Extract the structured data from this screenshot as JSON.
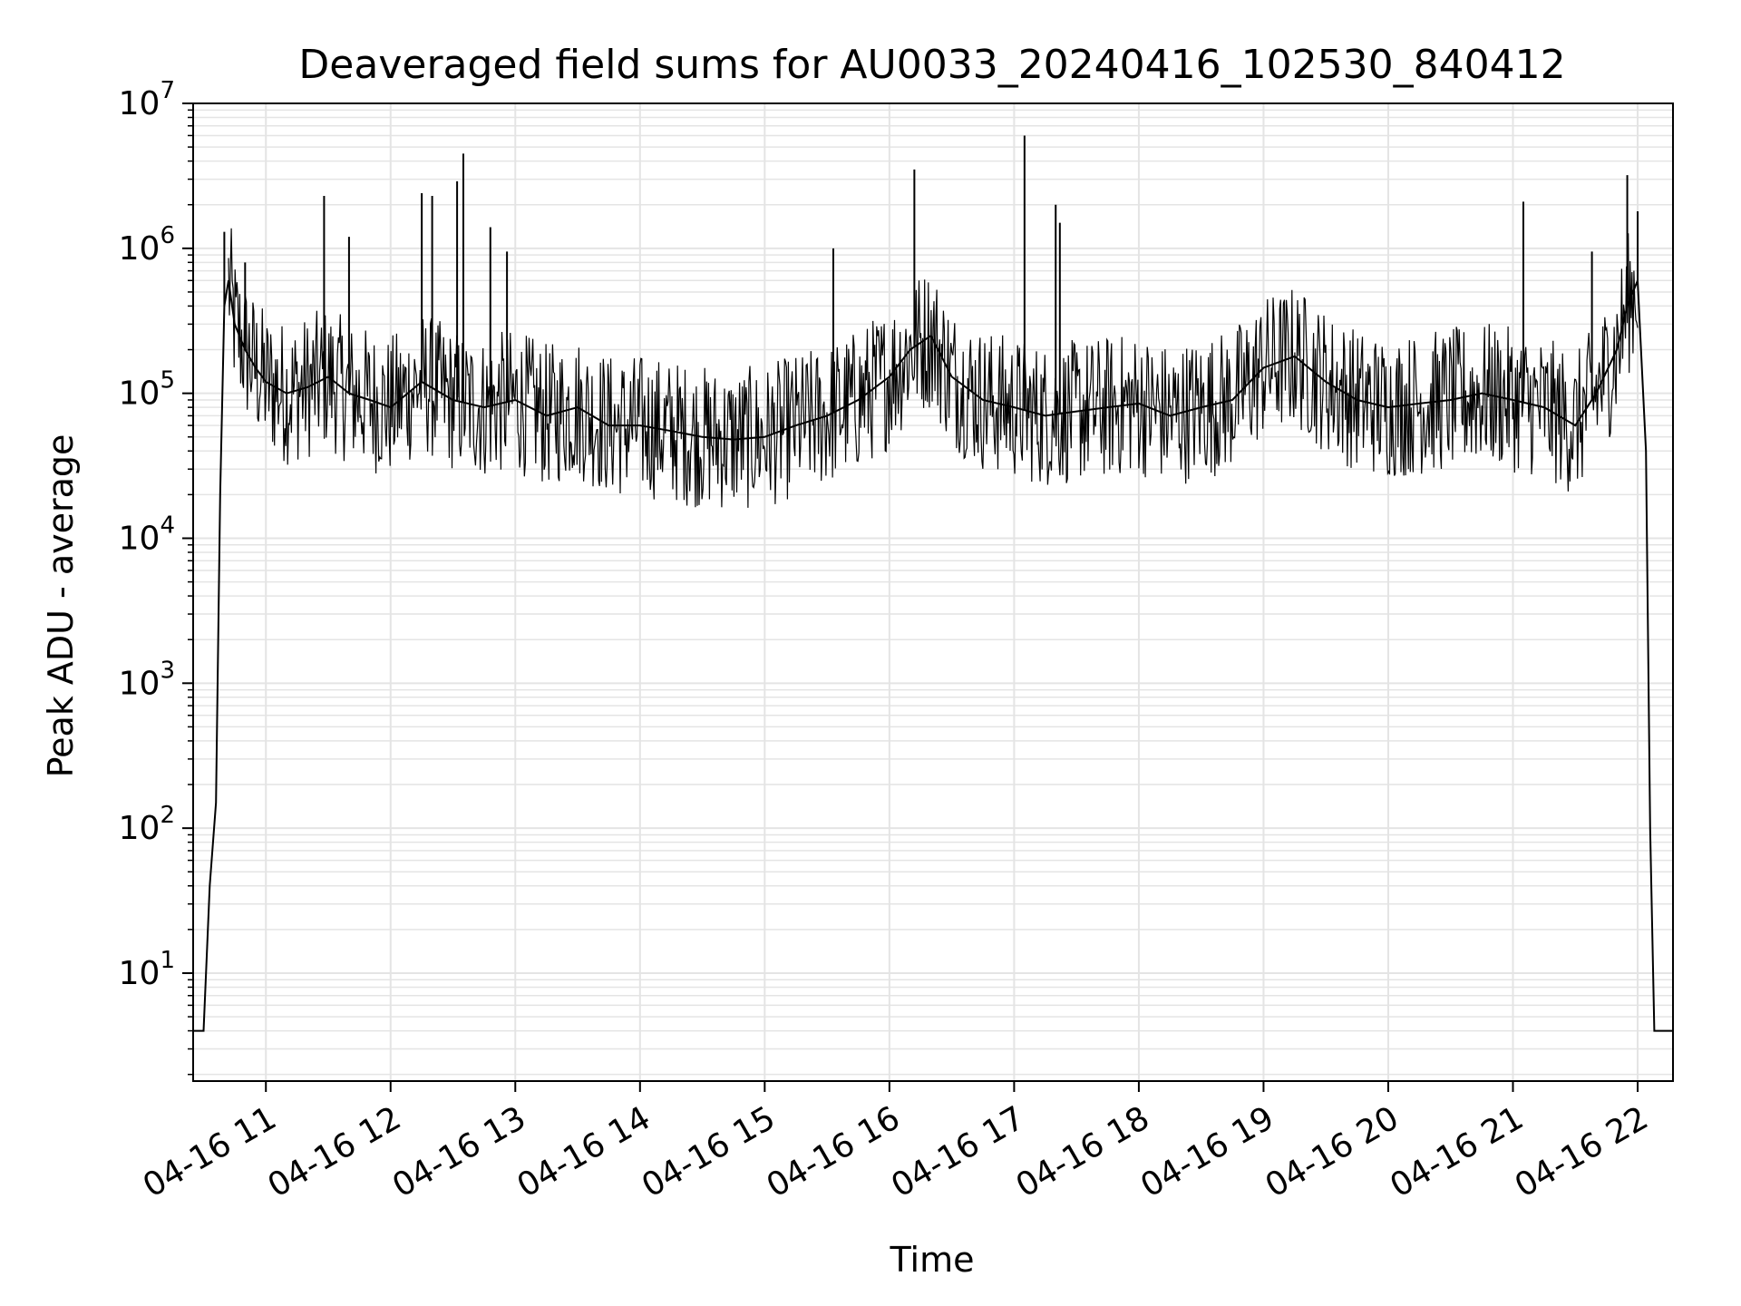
{
  "chart_data": {
    "type": "line",
    "title": "Deaveraged field sums for AU0033_20240416_102530_840412",
    "xlabel": "Time",
    "ylabel": "Peak ADU - average",
    "yscale": "log",
    "xlim": [
      "2024-04-16 10:25",
      "2024-04-16 22:17"
    ],
    "ylim": [
      1.8,
      10000000
    ],
    "grid": true,
    "x_ticks": [
      "04-16 11",
      "04-16 12",
      "04-16 13",
      "04-16 14",
      "04-16 15",
      "04-16 16",
      "04-16 17",
      "04-16 18",
      "04-16 19",
      "04-16 20",
      "04-16 21",
      "04-16 22"
    ],
    "y_ticks": [
      {
        "base": "10",
        "exp": "1",
        "value": 10
      },
      {
        "base": "10",
        "exp": "2",
        "value": 100
      },
      {
        "base": "10",
        "exp": "3",
        "value": 1000
      },
      {
        "base": "10",
        "exp": "4",
        "value": 10000
      },
      {
        "base": "10",
        "exp": "5",
        "value": 100000
      },
      {
        "base": "10",
        "exp": "6",
        "value": 1000000
      },
      {
        "base": "10",
        "exp": "7",
        "value": 10000000
      }
    ],
    "line_color": "#000000",
    "series": [
      {
        "x": [
          "2024-04-16 10:25",
          "2024-04-16 10:30",
          "2024-04-16 10:33",
          "2024-04-16 10:36",
          "2024-04-16 10:38",
          "2024-04-16 10:40",
          "2024-04-16 10:42",
          "2024-04-16 10:45",
          "2024-04-16 10:50",
          "2024-04-16 10:55",
          "2024-04-16 11:00",
          "2024-04-16 11:10",
          "2024-04-16 11:20",
          "2024-04-16 11:30",
          "2024-04-16 11:40",
          "2024-04-16 11:50",
          "2024-04-16 12:00",
          "2024-04-16 12:15",
          "2024-04-16 12:30",
          "2024-04-16 12:45",
          "2024-04-16 13:00",
          "2024-04-16 13:15",
          "2024-04-16 13:30",
          "2024-04-16 13:45",
          "2024-04-16 14:00",
          "2024-04-16 14:15",
          "2024-04-16 14:30",
          "2024-04-16 14:45",
          "2024-04-16 15:00",
          "2024-04-16 15:15",
          "2024-04-16 15:30",
          "2024-04-16 15:45",
          "2024-04-16 16:00",
          "2024-04-16 16:10",
          "2024-04-16 16:20",
          "2024-04-16 16:30",
          "2024-04-16 16:45",
          "2024-04-16 17:00",
          "2024-04-16 17:15",
          "2024-04-16 17:30",
          "2024-04-16 17:45",
          "2024-04-16 18:00",
          "2024-04-16 18:15",
          "2024-04-16 18:30",
          "2024-04-16 18:45",
          "2024-04-16 19:00",
          "2024-04-16 19:15",
          "2024-04-16 19:30",
          "2024-04-16 19:45",
          "2024-04-16 20:00",
          "2024-04-16 20:15",
          "2024-04-16 20:30",
          "2024-04-16 20:45",
          "2024-04-16 21:00",
          "2024-04-16 21:15",
          "2024-04-16 21:30",
          "2024-04-16 21:40",
          "2024-04-16 21:50",
          "2024-04-16 21:55",
          "2024-04-16 22:00",
          "2024-04-16 22:04",
          "2024-04-16 22:06",
          "2024-04-16 22:08",
          "2024-04-16 22:10",
          "2024-04-16 22:17"
        ],
        "y": [
          4,
          4,
          40,
          150,
          20000,
          400000,
          600000,
          300000,
          200000,
          150000,
          120000,
          100000,
          110000,
          130000,
          100000,
          90000,
          80000,
          120000,
          90000,
          80000,
          90000,
          70000,
          80000,
          60000,
          60000,
          55000,
          50000,
          48000,
          50000,
          60000,
          70000,
          90000,
          130000,
          200000,
          250000,
          130000,
          90000,
          80000,
          70000,
          75000,
          80000,
          85000,
          70000,
          80000,
          90000,
          150000,
          180000,
          120000,
          90000,
          80000,
          85000,
          90000,
          100000,
          90000,
          80000,
          60000,
          100000,
          200000,
          400000,
          600000,
          40000,
          100,
          4,
          4,
          4
        ]
      }
    ],
    "spikes": [
      {
        "x": "2024-04-16 10:40",
        "y": 1300000
      },
      {
        "x": "2024-04-16 10:50",
        "y": 800000
      },
      {
        "x": "2024-04-16 11:28",
        "y": 2300000
      },
      {
        "x": "2024-04-16 11:40",
        "y": 1200000
      },
      {
        "x": "2024-04-16 12:15",
        "y": 2400000
      },
      {
        "x": "2024-04-16 12:20",
        "y": 2300000
      },
      {
        "x": "2024-04-16 12:32",
        "y": 2900000
      },
      {
        "x": "2024-04-16 12:35",
        "y": 4500000
      },
      {
        "x": "2024-04-16 12:48",
        "y": 1400000
      },
      {
        "x": "2024-04-16 12:56",
        "y": 950000
      },
      {
        "x": "2024-04-16 15:33",
        "y": 1000000
      },
      {
        "x": "2024-04-16 16:12",
        "y": 3500000
      },
      {
        "x": "2024-04-16 17:05",
        "y": 6000000
      },
      {
        "x": "2024-04-16 17:20",
        "y": 2000000
      },
      {
        "x": "2024-04-16 17:22",
        "y": 1500000
      },
      {
        "x": "2024-04-16 21:05",
        "y": 2100000
      },
      {
        "x": "2024-04-16 21:38",
        "y": 950000
      },
      {
        "x": "2024-04-16 21:55",
        "y": 3200000
      },
      {
        "x": "2024-04-16 22:00",
        "y": 1800000
      }
    ]
  }
}
